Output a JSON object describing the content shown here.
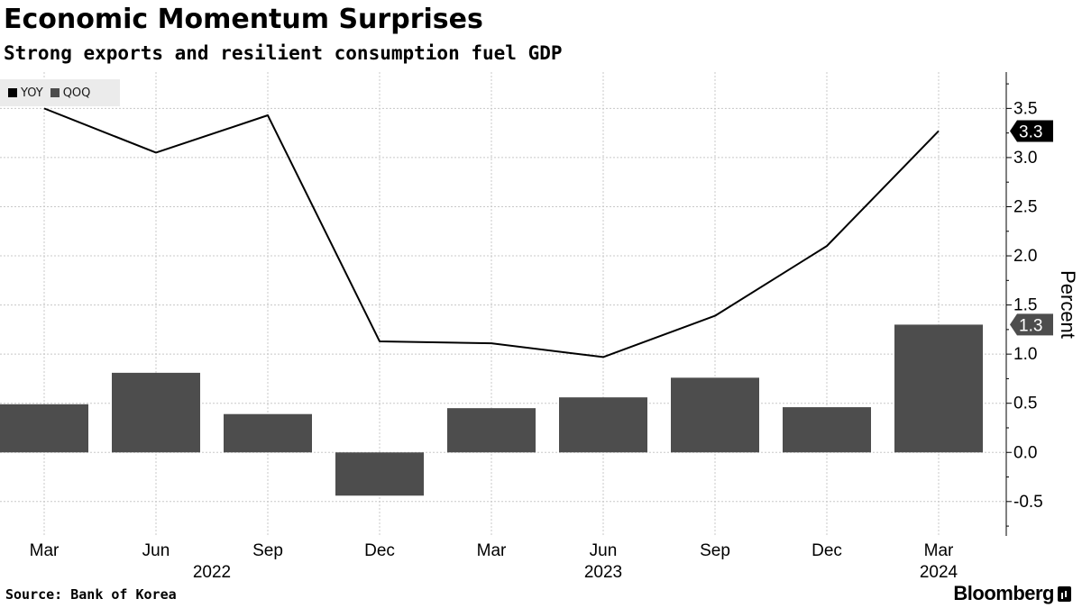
{
  "header": {
    "title": "Economic Momentum Surprises",
    "subtitle": "Strong exports and resilient consumption fuel GDP"
  },
  "footer": {
    "source": "Source: Bank of Korea",
    "brand": "Bloomberg"
  },
  "colors": {
    "yoy": "#000000",
    "qoq": "#4d4d4d",
    "grid": "#c8c8c8",
    "legend_bg": "#ebebeb"
  },
  "chart_data": {
    "type": "bar",
    "categories": [
      "Mar 2022",
      "Jun 2022",
      "Sep 2022",
      "Dec 2022",
      "Mar 2023",
      "Jun 2023",
      "Sep 2023",
      "Dec 2023",
      "Mar 2024"
    ],
    "tick_labels": [
      "Mar",
      "Jun",
      "Sep",
      "Dec",
      "Mar",
      "Jun",
      "Sep",
      "Dec",
      "Mar"
    ],
    "year_labels": [
      {
        "label": "2022",
        "under_index": 1.5
      },
      {
        "label": "2023",
        "under_index": 5
      },
      {
        "label": "2024",
        "under_index": 8
      }
    ],
    "series": [
      {
        "name": "YOY",
        "kind": "line",
        "values": [
          3.5,
          3.05,
          3.43,
          1.13,
          1.11,
          0.97,
          1.39,
          2.1,
          3.27
        ]
      },
      {
        "name": "QOQ",
        "kind": "bar",
        "values": [
          0.49,
          0.81,
          0.39,
          -0.44,
          0.45,
          0.56,
          0.76,
          0.46,
          1.3
        ]
      }
    ],
    "last_value_labels": [
      "3.3",
      "1.3"
    ],
    "ylabel": "Percent",
    "ylim": [
      -0.85,
      3.87
    ],
    "yticks": [
      -0.5,
      0.0,
      0.5,
      1.0,
      1.5,
      2.0,
      2.5,
      3.0,
      3.5
    ],
    "ytick_labels": [
      "-0.5",
      "0.0",
      "0.5",
      "1.0",
      "1.5",
      "2.0",
      "2.5",
      "3.0",
      "3.5"
    ],
    "grid": true,
    "legend_position": "top-left"
  }
}
